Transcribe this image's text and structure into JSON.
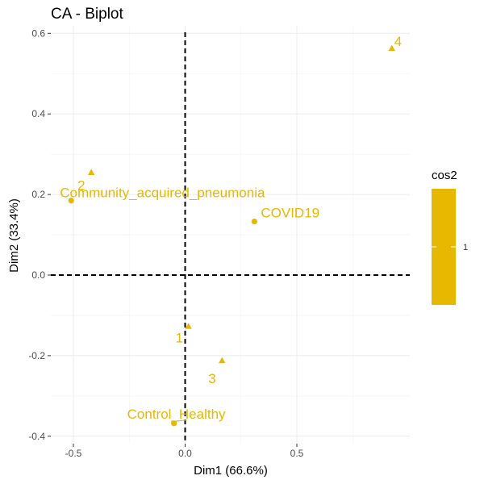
{
  "chart_data": {
    "type": "scatter",
    "title": "CA - Biplot",
    "xlabel": "Dim1 (66.6%)",
    "ylabel": "Dim2 (33.4%)",
    "xlim": [
      -0.6,
      1.0
    ],
    "ylim": [
      -0.4,
      0.6
    ],
    "x_ticks": [
      -0.5,
      0.0,
      0.5
    ],
    "x_tick_labels": [
      "-0.5",
      "0.0",
      "0.5"
    ],
    "y_ticks": [
      -0.4,
      -0.2,
      0.0,
      0.2,
      0.4,
      0.6
    ],
    "y_tick_labels": [
      "-0.4",
      "-0.2",
      "0.0",
      "0.2",
      "0.4",
      "0.6"
    ],
    "grid": true,
    "reference_lines": {
      "x": 0,
      "y": 0,
      "style": "dashed"
    },
    "legend": {
      "title": "cos2",
      "tick_label": "1",
      "placement": "right"
    },
    "point_color": "#E7B800",
    "series": [
      {
        "marker": "circle",
        "points": [
          {
            "label": "Community_acquired_pneumonia",
            "x": -0.51,
            "y": 0.185
          },
          {
            "label": "COVID19",
            "x": 0.31,
            "y": 0.133
          },
          {
            "label": "Control_Healthy",
            "x": -0.05,
            "y": -0.368
          }
        ]
      },
      {
        "marker": "triangle",
        "points": [
          {
            "label": "1",
            "x": 0.015,
            "y": -0.127
          },
          {
            "label": "2",
            "x": -0.42,
            "y": 0.255
          },
          {
            "label": "3",
            "x": 0.165,
            "y": -0.212
          },
          {
            "label": "4",
            "x": 0.925,
            "y": 0.563
          }
        ]
      }
    ]
  }
}
